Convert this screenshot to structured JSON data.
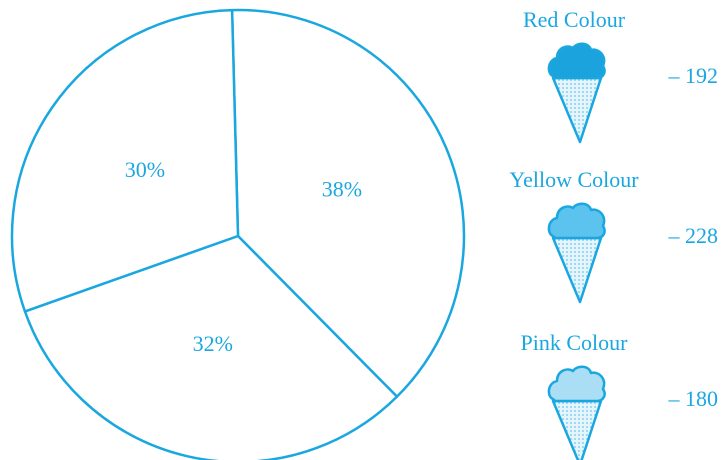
{
  "chart_data": {
    "type": "pie",
    "values": [
      38,
      32,
      30
    ],
    "value_labels": [
      "38%",
      "32%",
      "30%"
    ],
    "color": "#1aa7e0",
    "legend": [
      {
        "label": "Red Colour",
        "value": 192,
        "value_label": "– 192",
        "color": "#1aa3dc"
      },
      {
        "label": "Yellow Colour",
        "value": 228,
        "value_label": "– 228",
        "color": "#5cc3ee"
      },
      {
        "label": "Pink Colour",
        "value": 180,
        "value_label": "– 180",
        "color": "#a9def5"
      }
    ]
  }
}
